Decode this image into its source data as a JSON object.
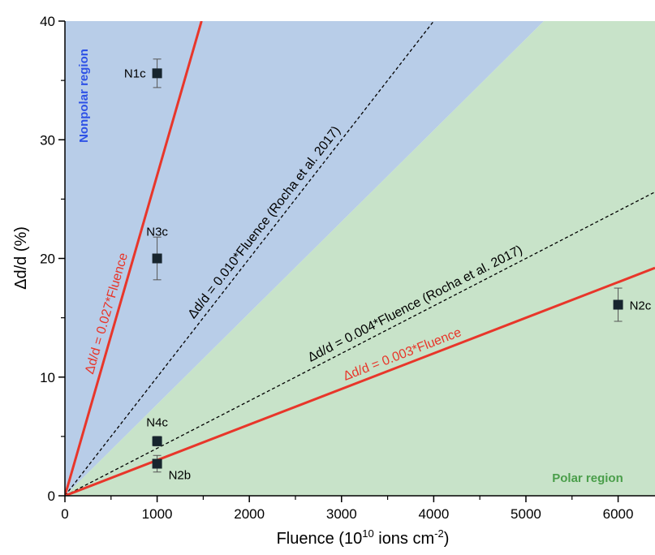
{
  "chart_data": {
    "type": "scatter",
    "xlabel": {
      "main": "Fluence (10",
      "sup1": "10",
      "mid": " ions cm",
      "sup2": "-2",
      "end": ")"
    },
    "ylabel": "Δd/d (%)",
    "xlim": [
      0,
      6400
    ],
    "ylim": [
      0,
      40
    ],
    "x_ticks": [
      "0",
      "1000",
      "2000",
      "3000",
      "4000",
      "5000",
      "6000"
    ],
    "x_tick_values": [
      0,
      1000,
      2000,
      3000,
      4000,
      5000,
      6000
    ],
    "y_ticks": [
      "0",
      "10",
      "20",
      "30",
      "40"
    ],
    "y_tick_values": [
      0,
      10,
      20,
      30,
      40
    ],
    "grid": false,
    "regions": [
      {
        "name": "Nonpolar region",
        "color": "#b8cde8",
        "label_color": "#2e52e6",
        "boundary_slope": 0.0077,
        "side": "above"
      },
      {
        "name": "Polar region",
        "color": "#c8e3c9",
        "label_color": "#4a9e4a",
        "boundary_slope": 0.0077,
        "side": "below"
      }
    ],
    "lines": [
      {
        "slope": 0.027,
        "label": "Δd/d = 0.027*Fluence",
        "style": "solid",
        "color": "#e8362a"
      },
      {
        "slope": 0.01,
        "label": "Δd/d = 0.010*Fluence (Rocha et al. 2017)",
        "style": "dashed",
        "color": "#000000"
      },
      {
        "slope": 0.004,
        "label": "Δd/d = 0.004*Fluence (Rocha et al. 2017)",
        "style": "dashed",
        "color": "#000000"
      },
      {
        "slope": 0.003,
        "label": "Δd/d = 0.003*Fluence",
        "style": "solid",
        "color": "#e8362a"
      }
    ],
    "points": [
      {
        "label": "N1c",
        "x": 1000,
        "y": 35.6,
        "yerr": 1.2
      },
      {
        "label": "N3c",
        "x": 1000,
        "y": 20.0,
        "yerr": 1.8
      },
      {
        "label": "N4c",
        "x": 1000,
        "y": 4.6,
        "yerr": 0.4
      },
      {
        "label": "N2b",
        "x": 1000,
        "y": 2.7,
        "yerr": 0.7
      },
      {
        "label": "N2c",
        "x": 6000,
        "y": 16.1,
        "yerr": 1.4
      }
    ],
    "marker_color": "#17252e"
  }
}
